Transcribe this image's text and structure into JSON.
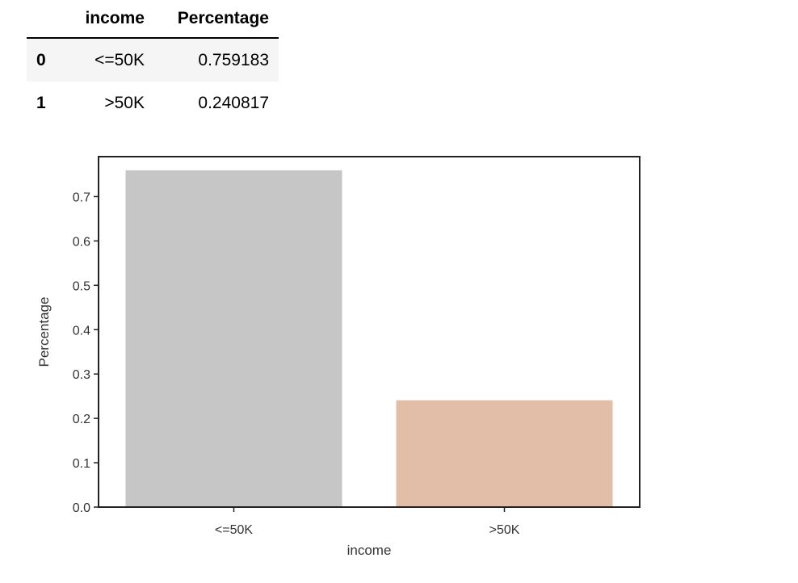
{
  "table": {
    "columns": [
      "income",
      "Percentage"
    ],
    "rows": [
      {
        "index": "0",
        "income": "<=50K",
        "percentage": "0.759183"
      },
      {
        "index": "1",
        "income": ">50K",
        "percentage": "0.240817"
      }
    ]
  },
  "chart_data": {
    "type": "bar",
    "categories": [
      "<=50K",
      ">50K"
    ],
    "values": [
      0.759183,
      0.240817
    ],
    "colors": [
      "#c6c6c6",
      "#e2bda8"
    ],
    "xlabel": "income",
    "ylabel": "Percentage",
    "ylim": [
      0,
      0.79
    ],
    "yticks": [
      0.0,
      0.1,
      0.2,
      0.3,
      0.4,
      0.5,
      0.6,
      0.7
    ],
    "ytick_labels": [
      "0.0",
      "0.1",
      "0.2",
      "0.3",
      "0.4",
      "0.5",
      "0.6",
      "0.7"
    ],
    "grid": false
  }
}
